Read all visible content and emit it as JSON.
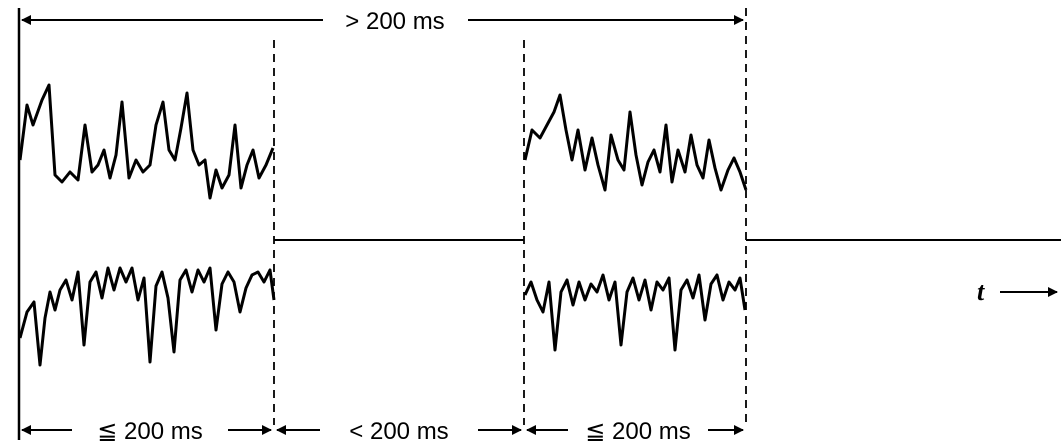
{
  "diagram": {
    "top_span_label": "> 200 ms",
    "bottom_spans": [
      {
        "label": "≦ 200 ms"
      },
      {
        "label": "< 200 ms"
      },
      {
        "label": "≦ 200 ms"
      }
    ],
    "time_axis_label": "t",
    "colors": {
      "ink": "#000000",
      "background": "#ffffff"
    }
  }
}
